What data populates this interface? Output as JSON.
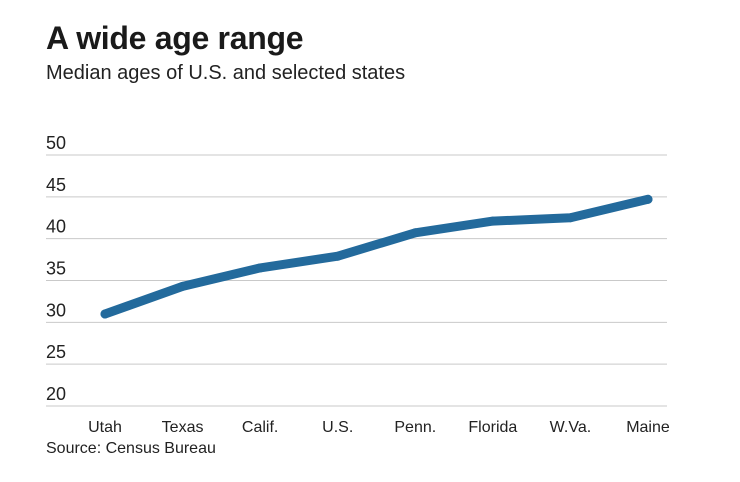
{
  "header": {
    "title": "A wide age range",
    "subtitle": "Median ages of U.S. and selected states"
  },
  "footer": {
    "source": "Source: Census Bureau"
  },
  "colors": {
    "line": "#236a9c",
    "grid": "#c9c9c9"
  },
  "chart_data": {
    "type": "line",
    "title": "A wide age range",
    "subtitle": "Median ages of U.S. and selected states",
    "xlabel": "",
    "ylabel": "",
    "categories": [
      "Utah",
      "Texas",
      "Calif.",
      "U.S.",
      "Penn.",
      "Florida",
      "W.Va.",
      "Maine"
    ],
    "series": [
      {
        "values": [
          31.0,
          34.3,
          36.5,
          37.9,
          40.7,
          42.1,
          42.5,
          44.7
        ]
      }
    ],
    "ylim": [
      20,
      50
    ],
    "yticks": [
      20,
      25,
      30,
      35,
      40,
      45,
      50
    ],
    "grid": true,
    "legend": "none"
  }
}
